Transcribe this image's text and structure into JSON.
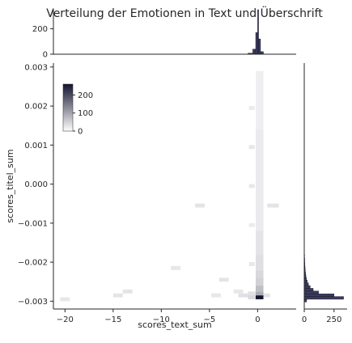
{
  "chart_data": {
    "type": "heatmap",
    "title": "Verteilung der Emotionen in Text und Überschrift",
    "xlabel": "scores_text_sum",
    "ylabel": "scores_titel_sum",
    "xlim": [
      -21.2,
      4.0
    ],
    "ylim": [
      -0.0032,
      0.0031
    ],
    "grid": false,
    "colormap": [
      "#ffffff",
      "#14142e"
    ],
    "x_ticks": [
      "−20",
      "−15",
      "−10",
      "−5",
      "0"
    ],
    "x_tick_values": [
      -20,
      -15,
      -10,
      -5,
      0
    ],
    "y_ticks": [
      "−0.003",
      "−0.002",
      "−0.001",
      "0.000",
      "0.001",
      "0.002",
      "0.003"
    ],
    "y_tick_values": [
      -0.003,
      -0.002,
      -0.001,
      0.0,
      0.001,
      0.002,
      0.003
    ],
    "colorbar": {
      "range": [
        0,
        260
      ],
      "ticks": [
        "0",
        "100",
        "200"
      ],
      "tick_values": [
        0,
        100,
        200
      ],
      "placement": "top-left"
    },
    "bins": [
      {
        "x": [
          -0.2,
          0.6
        ],
        "y": [
          -0.00295,
          -0.00285
        ],
        "count": 260
      },
      {
        "x": [
          -0.2,
          0.6
        ],
        "y": [
          -0.00285,
          -0.00275
        ],
        "count": 40
      },
      {
        "x": [
          -0.2,
          0.6
        ],
        "y": [
          -0.00275,
          -0.0026
        ],
        "count": 25
      },
      {
        "x": [
          -0.2,
          0.6
        ],
        "y": [
          -0.0026,
          -0.0024
        ],
        "count": 14
      },
      {
        "x": [
          -0.2,
          0.6
        ],
        "y": [
          -0.0024,
          -0.0022
        ],
        "count": 10
      },
      {
        "x": [
          -0.2,
          0.6
        ],
        "y": [
          -0.0022,
          -0.0018
        ],
        "count": 7
      },
      {
        "x": [
          -0.2,
          0.6
        ],
        "y": [
          -0.0018,
          -0.0012
        ],
        "count": 5
      },
      {
        "x": [
          -0.2,
          0.6
        ],
        "y": [
          -0.0012,
          0.0
        ],
        "count": 3
      },
      {
        "x": [
          -0.2,
          0.6
        ],
        "y": [
          0.0,
          0.0014
        ],
        "count": 3
      },
      {
        "x": [
          -0.2,
          0.6
        ],
        "y": [
          0.0014,
          0.0029
        ],
        "count": 2
      },
      {
        "x": [
          -1.0,
          -0.2
        ],
        "y": [
          -0.00295,
          -0.00285
        ],
        "count": 10
      },
      {
        "x": [
          -1.0,
          -0.2
        ],
        "y": [
          -0.00285,
          -0.00275
        ],
        "count": 6
      },
      {
        "x": [
          -2.0,
          -1.0
        ],
        "y": [
          -0.0029,
          -0.0028
        ],
        "count": 6
      },
      {
        "x": [
          -2.5,
          -1.5
        ],
        "y": [
          -0.0028,
          -0.0027
        ],
        "count": 4
      },
      {
        "x": [
          -0.9,
          -0.3
        ],
        "y": [
          -0.0001,
          0.0
        ],
        "count": 4
      },
      {
        "x": [
          -0.9,
          -0.3
        ],
        "y": [
          0.0009,
          0.001
        ],
        "count": 4
      },
      {
        "x": [
          -0.9,
          -0.3
        ],
        "y": [
          0.0019,
          0.002
        ],
        "count": 3
      },
      {
        "x": [
          -0.9,
          -0.3
        ],
        "y": [
          -0.0011,
          -0.001
        ],
        "count": 3
      },
      {
        "x": [
          -0.9,
          -0.3
        ],
        "y": [
          -0.0021,
          -0.002
        ],
        "count": 4
      },
      {
        "x": [
          0.6,
          1.3
        ],
        "y": [
          -0.0029,
          -0.0028
        ],
        "count": 5
      },
      {
        "x": [
          1.0,
          2.2
        ],
        "y": [
          -0.0006,
          -0.0005
        ],
        "count": 5
      },
      {
        "x": [
          -4.0,
          -3.0
        ],
        "y": [
          -0.0025,
          -0.0024
        ],
        "count": 5
      },
      {
        "x": [
          -15.0,
          -14.0
        ],
        "y": [
          -0.0029,
          -0.0028
        ],
        "count": 5
      },
      {
        "x": [
          -14.0,
          -13.0
        ],
        "y": [
          -0.0028,
          -0.0027
        ],
        "count": 5
      },
      {
        "x": [
          -20.5,
          -19.5
        ],
        "y": [
          -0.003,
          -0.0029
        ],
        "count": 4
      },
      {
        "x": [
          -9.0,
          -8.0
        ],
        "y": [
          -0.0022,
          -0.0021
        ],
        "count": 4
      },
      {
        "x": [
          -6.5,
          -5.5
        ],
        "y": [
          -0.0006,
          -0.0005
        ],
        "count": 5
      },
      {
        "x": [
          -4.8,
          -3.8
        ],
        "y": [
          -0.0029,
          -0.0028
        ],
        "count": 4
      }
    ],
    "marginal_x": {
      "ylim": [
        0,
        350
      ],
      "y_ticks": [
        "0",
        "200"
      ],
      "y_tick_values": [
        0,
        200
      ],
      "bins": [
        {
          "x": [
            -1.0,
            -0.5
          ],
          "count": 8
        },
        {
          "x": [
            -0.5,
            -0.2
          ],
          "count": 40
        },
        {
          "x": [
            -0.2,
            0.0
          ],
          "count": 170
        },
        {
          "x": [
            0.0,
            0.1
          ],
          "count": 355
        },
        {
          "x": [
            0.1,
            0.3
          ],
          "count": 120
        },
        {
          "x": [
            0.3,
            0.6
          ],
          "count": 20
        }
      ]
    },
    "marginal_y": {
      "xlim": [
        0,
        360
      ],
      "x_ticks": [
        "0",
        "250"
      ],
      "x_tick_values": [
        0,
        250
      ],
      "bins": [
        {
          "y": [
            -0.00302,
            -0.00295
          ],
          "count": 20
        },
        {
          "y": [
            -0.00295,
            -0.00288
          ],
          "count": 330
        },
        {
          "y": [
            -0.00288,
            -0.00281
          ],
          "count": 250
        },
        {
          "y": [
            -0.00281,
            -0.00274
          ],
          "count": 120
        },
        {
          "y": [
            -0.00274,
            -0.00267
          ],
          "count": 75
        },
        {
          "y": [
            -0.00267,
            -0.0026
          ],
          "count": 50
        },
        {
          "y": [
            -0.0026,
            -0.00253
          ],
          "count": 35
        },
        {
          "y": [
            -0.00253,
            -0.00246
          ],
          "count": 25
        },
        {
          "y": [
            -0.00246,
            -0.00239
          ],
          "count": 18
        },
        {
          "y": [
            -0.00239,
            -0.00232
          ],
          "count": 14
        },
        {
          "y": [
            -0.00232,
            -0.00225
          ],
          "count": 11
        },
        {
          "y": [
            -0.00225,
            -0.00218
          ],
          "count": 9
        },
        {
          "y": [
            -0.00218,
            -0.0021
          ],
          "count": 7
        },
        {
          "y": [
            -0.0021,
            -0.002
          ],
          "count": 5
        },
        {
          "y": [
            -0.002,
            -0.0019
          ],
          "count": 4
        },
        {
          "y": [
            -0.0019,
            -0.0018
          ],
          "count": 3
        },
        {
          "y": [
            -0.0018,
            -0.0017
          ],
          "count": 2
        }
      ]
    }
  }
}
